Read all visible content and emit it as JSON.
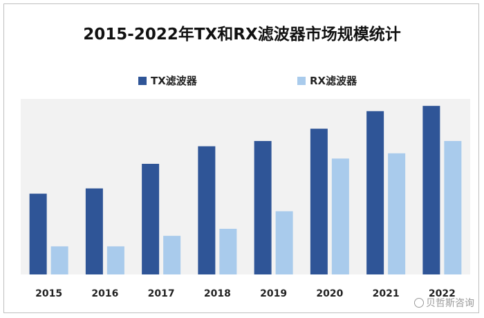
{
  "watermark": "贝哲斯咨询",
  "colors": {
    "tx": "#2F5597",
    "rx": "#A9CBEC",
    "plot_bg": "#F2F2F2"
  },
  "chart_data": {
    "type": "bar",
    "title": "2015-2022年TX和RX滤波器市场规模统计",
    "categories": [
      "2015",
      "2016",
      "2017",
      "2018",
      "2019",
      "2020",
      "2021",
      "2022"
    ],
    "series": [
      {
        "name": "TX滤波器",
        "values": [
          46,
          49,
          63,
          73,
          76,
          83,
          93,
          96
        ]
      },
      {
        "name": "RX滤波器",
        "values": [
          16,
          16,
          22,
          26,
          36,
          66,
          69,
          76
        ]
      }
    ],
    "ylim": [
      0,
      100
    ],
    "grid": false,
    "legend_position": "top-center"
  }
}
